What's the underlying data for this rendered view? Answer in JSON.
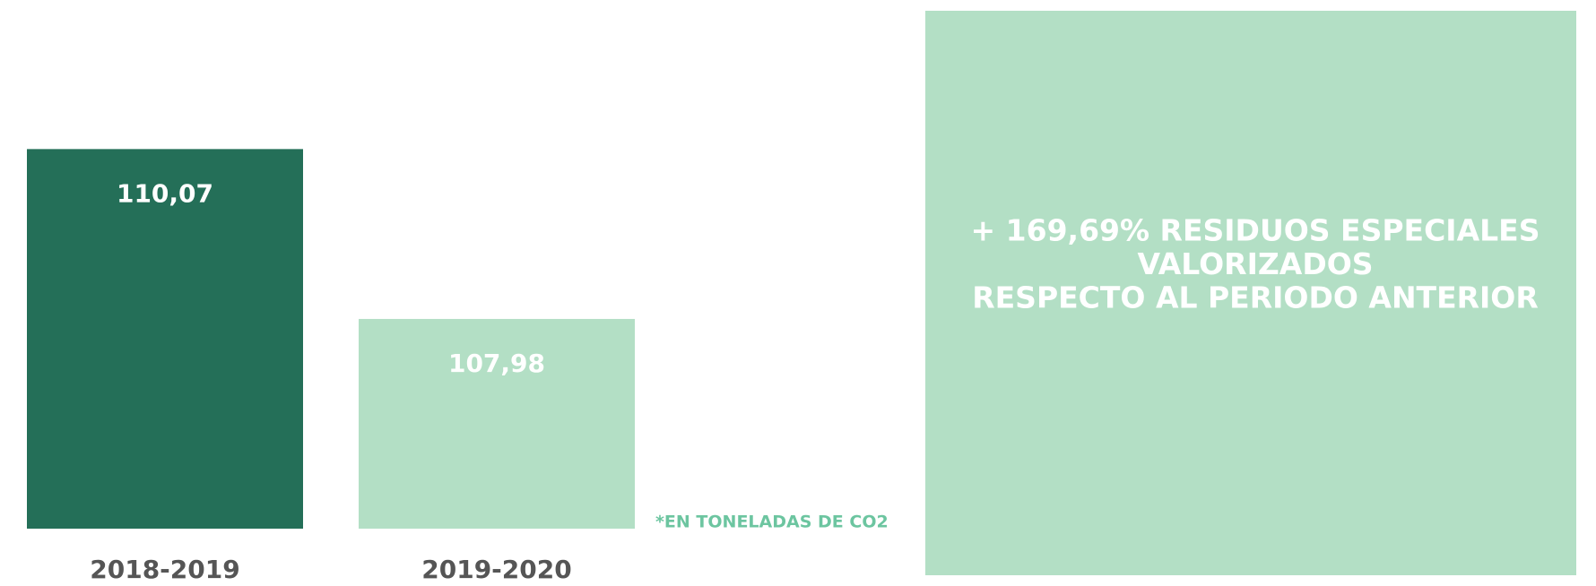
{
  "chart_data": {
    "type": "bar",
    "categories": [
      "2018-2019",
      "2019-2020"
    ],
    "values": [
      110.07,
      107.98
    ],
    "value_labels": [
      "110,07",
      "107,98"
    ],
    "colors": [
      "#246f58",
      "#b3dfc5"
    ],
    "ylim": [
      105.4,
      111
    ],
    "note": "*EN TONELADAS DE CO2",
    "callout": [
      "+ 169,69% RESIDUOS ESPECIALES",
      "VALORIZADOS",
      "RESPECTO AL PERIODO ANTERIOR"
    ],
    "callout_color": "#b3dfc5"
  }
}
